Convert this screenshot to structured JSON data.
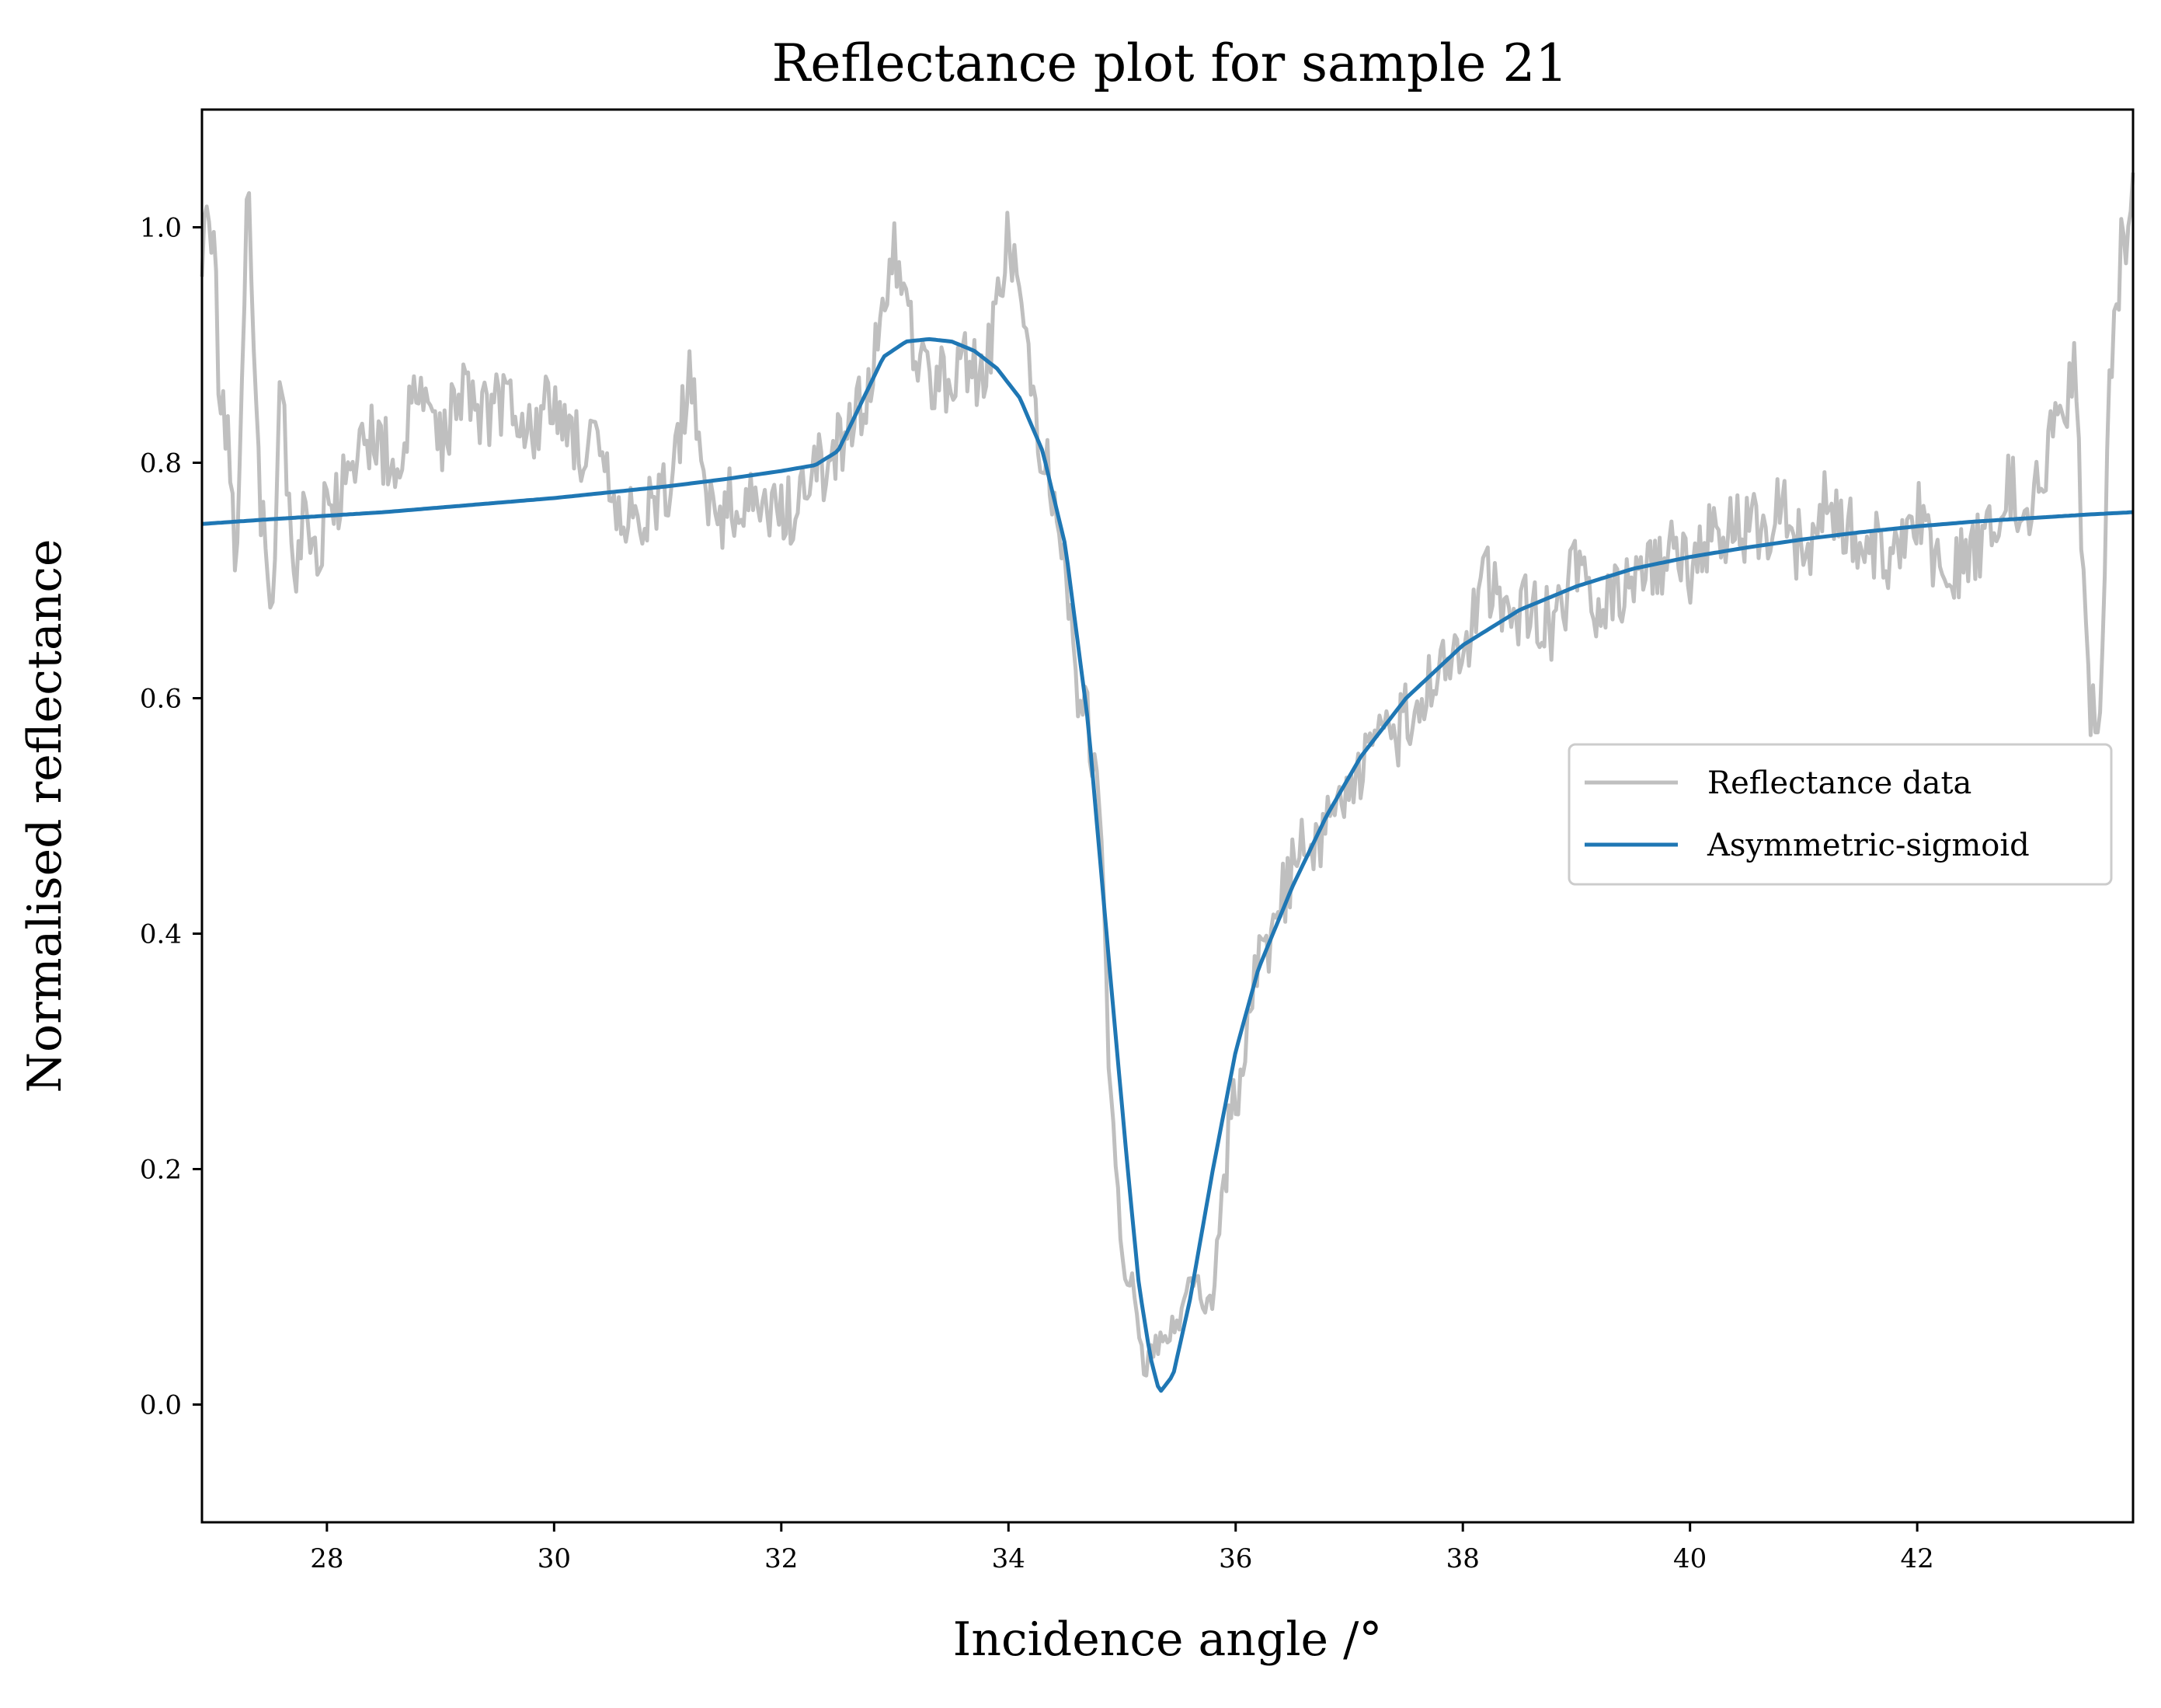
{
  "chart_data": {
    "type": "line",
    "title": "Reflectance plot for sample 21",
    "xlabel": "Incidence angle /°",
    "ylabel": "Normalised reflectance",
    "xlim": [
      26.9,
      43.9
    ],
    "ylim": [
      -0.1,
      1.1
    ],
    "xticks": [
      28,
      30,
      32,
      34,
      36,
      38,
      40,
      42
    ],
    "yticks": [
      0.0,
      0.2,
      0.4,
      0.6,
      0.8,
      1.0
    ],
    "xtick_labels": [
      "28",
      "30",
      "32",
      "34",
      "36",
      "38",
      "40",
      "42"
    ],
    "ytick_labels": [
      "0.0",
      "0.2",
      "0.4",
      "0.6",
      "0.8",
      "1.0"
    ],
    "grid": false,
    "legend_position": "center-right",
    "series": [
      {
        "name": "Reflectance data",
        "color": "#bfbfbf",
        "style": "noisy",
        "x": [
          26.9,
          27.0,
          27.05,
          27.1,
          27.2,
          27.3,
          27.4,
          27.5,
          27.6,
          27.7,
          27.8,
          27.9,
          28.0,
          28.2,
          28.4,
          28.6,
          28.8,
          29.0,
          29.2,
          29.4,
          29.6,
          29.8,
          30.0,
          30.2,
          30.4,
          30.6,
          30.8,
          31.0,
          31.2,
          31.4,
          31.6,
          31.8,
          32.0,
          32.2,
          32.4,
          32.6,
          32.8,
          33.0,
          33.2,
          33.4,
          33.6,
          33.8,
          34.0,
          34.2,
          34.4,
          34.5,
          34.6,
          34.7,
          34.8,
          34.9,
          35.0,
          35.1,
          35.2,
          35.3,
          35.4,
          35.5,
          35.6,
          35.7,
          35.8,
          35.9,
          36.0,
          36.2,
          36.4,
          36.6,
          36.8,
          37.0,
          37.2,
          37.4,
          37.6,
          37.8,
          38.0,
          38.2,
          38.4,
          38.6,
          38.8,
          39.0,
          39.2,
          39.4,
          39.6,
          39.8,
          40.0,
          40.2,
          40.4,
          40.6,
          40.8,
          41.0,
          41.2,
          41.4,
          41.6,
          41.8,
          42.0,
          42.2,
          42.4,
          42.6,
          42.8,
          43.0,
          43.2,
          43.4,
          43.5,
          43.6,
          43.7,
          43.8,
          43.9
        ],
        "y": [
          0.99,
          1.0,
          0.86,
          0.85,
          0.72,
          1.05,
          0.79,
          0.66,
          0.87,
          0.69,
          0.76,
          0.72,
          0.76,
          0.78,
          0.83,
          0.79,
          0.86,
          0.82,
          0.87,
          0.84,
          0.86,
          0.83,
          0.85,
          0.82,
          0.8,
          0.74,
          0.76,
          0.77,
          0.88,
          0.75,
          0.77,
          0.76,
          0.75,
          0.78,
          0.8,
          0.82,
          0.88,
          0.98,
          0.89,
          0.87,
          0.89,
          0.87,
          1.0,
          0.86,
          0.76,
          0.72,
          0.61,
          0.58,
          0.5,
          0.27,
          0.12,
          0.1,
          0.03,
          0.05,
          0.06,
          0.07,
          0.12,
          0.09,
          0.09,
          0.2,
          0.26,
          0.37,
          0.43,
          0.47,
          0.49,
          0.53,
          0.55,
          0.57,
          0.6,
          0.62,
          0.64,
          0.7,
          0.67,
          0.68,
          0.66,
          0.71,
          0.67,
          0.69,
          0.7,
          0.72,
          0.71,
          0.74,
          0.75,
          0.74,
          0.76,
          0.72,
          0.77,
          0.75,
          0.73,
          0.72,
          0.76,
          0.7,
          0.72,
          0.74,
          0.78,
          0.76,
          0.82,
          0.88,
          0.6,
          0.58,
          0.88,
          0.98,
          1.02
        ]
      },
      {
        "name": "Asymmetric-sigmoid",
        "color": "#1f77b4",
        "style": "smooth",
        "x": [
          26.9,
          27.5,
          28.0,
          28.5,
          29.0,
          29.5,
          30.0,
          30.5,
          31.0,
          31.5,
          32.0,
          32.3,
          32.5,
          32.7,
          32.9,
          33.1,
          33.3,
          33.5,
          33.7,
          33.9,
          34.1,
          34.3,
          34.5,
          34.7,
          34.9,
          35.05,
          35.15,
          35.25,
          35.33,
          35.45,
          35.6,
          35.8,
          36.0,
          36.2,
          36.5,
          36.8,
          37.1,
          37.5,
          38.0,
          38.5,
          39.0,
          39.5,
          40.0,
          40.5,
          41.0,
          41.5,
          42.0,
          42.5,
          43.0,
          43.5,
          43.9
        ],
        "y": [
          0.748,
          0.752,
          0.755,
          0.758,
          0.762,
          0.766,
          0.77,
          0.775,
          0.78,
          0.786,
          0.793,
          0.798,
          0.81,
          0.85,
          0.89,
          0.903,
          0.905,
          0.903,
          0.895,
          0.88,
          0.855,
          0.81,
          0.73,
          0.58,
          0.36,
          0.2,
          0.1,
          0.04,
          0.01,
          0.025,
          0.09,
          0.2,
          0.3,
          0.37,
          0.44,
          0.5,
          0.55,
          0.6,
          0.645,
          0.675,
          0.695,
          0.71,
          0.72,
          0.728,
          0.735,
          0.741,
          0.746,
          0.75,
          0.753,
          0.756,
          0.758
        ]
      }
    ]
  }
}
